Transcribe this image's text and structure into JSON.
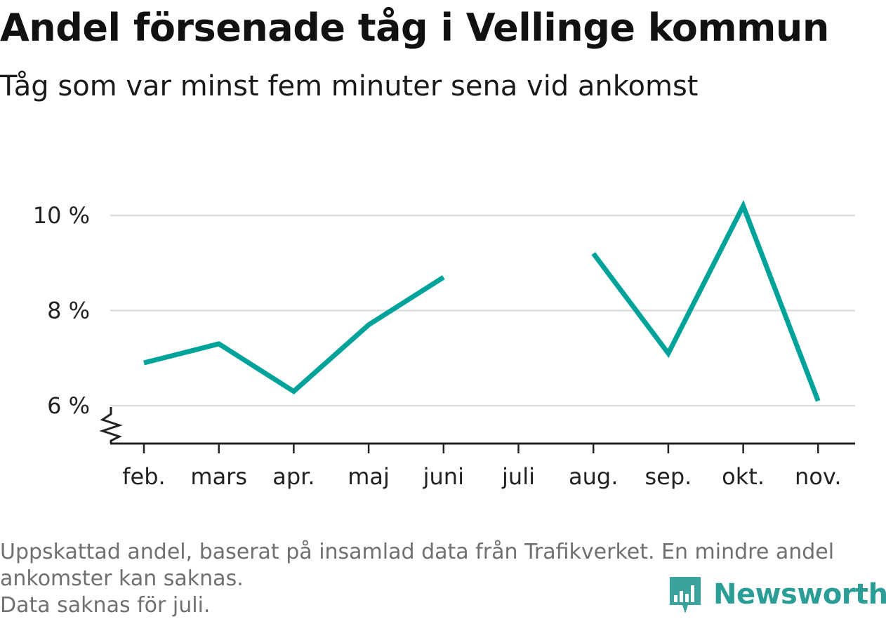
{
  "title": "Andel försenade tåg i Vellinge kommun",
  "subtitle": "Tåg som var minst fem minuter sena vid ankomst",
  "colors": {
    "line": "#00a39a",
    "grid": "#dddddd",
    "axis": "#222222",
    "brand": "#2a9d96"
  },
  "chart_data": {
    "type": "line",
    "title": "Andel försenade tåg i Vellinge kommun",
    "subtitle": "Tåg som var minst fem minuter sena vid ankomst",
    "categories": [
      "feb.",
      "mars",
      "apr.",
      "maj",
      "juni",
      "juli",
      "aug.",
      "sep.",
      "okt.",
      "nov."
    ],
    "series": [
      {
        "values": [
          6.9,
          7.3,
          6.3,
          7.7,
          8.7,
          null,
          9.2,
          7.1,
          10.2,
          6.1
        ]
      }
    ],
    "y_ticks": [
      6,
      8,
      10
    ],
    "y_tick_labels": [
      "6 %",
      "8 %",
      "10 %"
    ],
    "ylim": [
      5.2,
      10.6
    ],
    "grid": true,
    "axis_break": true,
    "legend": "none"
  },
  "footnote": {
    "line1": "Uppskattad andel, baserat på insamlad data från Trafikverket. En mindre andel",
    "line2": "ankomster kan saknas.",
    "line3": "Data saknas för juli."
  },
  "brand": {
    "name": "Newsworthy",
    "icon": "newsworthy-logo-icon"
  }
}
